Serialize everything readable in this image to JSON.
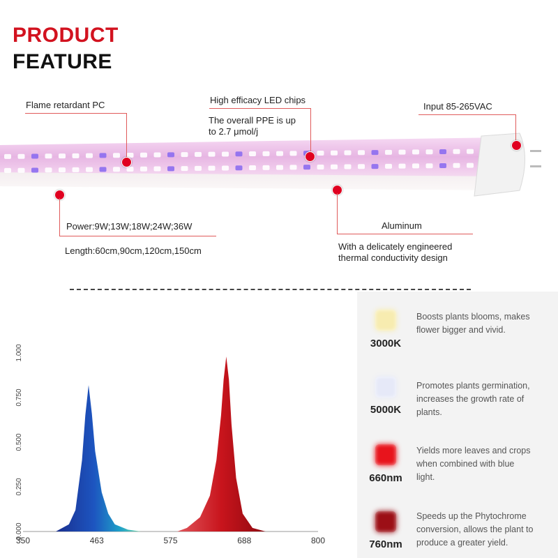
{
  "heading": {
    "line1": "PRODUCT",
    "line2": "FEATURE",
    "line1_color": "#d2121f",
    "line2_color": "#111111"
  },
  "callouts": {
    "flame": "Flame retardant PC",
    "led": "High efficacy LED chips",
    "ppe": [
      "The overall PPE is up",
      "to 2.7 μmol/j"
    ],
    "input": "Input 85-265VAC",
    "power": "Power:9W;13W;18W;24W;36W",
    "length": "Length:60cm,90cm,120cm,150cm",
    "aluminum": "Aluminum",
    "thermal": [
      "With a delicately engineered",
      "thermal conductivity design"
    ]
  },
  "legend": [
    {
      "code": "3000K",
      "color": "#f7ecb0",
      "text": [
        "Boosts plants blooms, makes",
        "flower bigger and vivid."
      ]
    },
    {
      "code": "5000K",
      "color": "#e6e9f8",
      "text": [
        "Promotes plants germination,",
        "increases the growth rate of",
        "plants."
      ]
    },
    {
      "code": "660nm",
      "color": "#e8141c",
      "text": [
        "Yields more leaves and crops",
        "when combined with blue",
        "light."
      ]
    },
    {
      "code": "760nm",
      "color": "#9c0f16",
      "text": [
        "Speeds up the Phytochrome",
        "conversion, allows the plant to",
        "produce a greater yield."
      ]
    }
  ],
  "chart_data": {
    "type": "area",
    "title": "",
    "xlabel": "",
    "ylabel": "",
    "xlim": [
      350,
      800
    ],
    "ylim": [
      0,
      1
    ],
    "x_ticks": [
      "350",
      "463",
      "575",
      "688",
      "800"
    ],
    "y_ticks": [
      "0.000",
      "0.250",
      "0.500",
      "0.750",
      "1.000"
    ],
    "grid": false,
    "series": [
      {
        "peak_x": 450,
        "peak_y": 0.82,
        "color": "#1e3f9e",
        "points": [
          [
            400,
            0.0
          ],
          [
            420,
            0.04
          ],
          [
            430,
            0.12
          ],
          [
            440,
            0.4
          ],
          [
            445,
            0.65
          ],
          [
            450,
            0.82
          ],
          [
            455,
            0.66
          ],
          [
            460,
            0.45
          ],
          [
            470,
            0.22
          ],
          [
            480,
            0.1
          ],
          [
            490,
            0.04
          ],
          [
            510,
            0.01
          ],
          [
            530,
            0.0
          ]
        ]
      },
      {
        "peak_x": 660,
        "peak_y": 0.98,
        "color": "#c8141c",
        "points": [
          [
            585,
            0.0
          ],
          [
            600,
            0.02
          ],
          [
            620,
            0.08
          ],
          [
            635,
            0.2
          ],
          [
            645,
            0.4
          ],
          [
            652,
            0.65
          ],
          [
            656,
            0.85
          ],
          [
            660,
            0.98
          ],
          [
            664,
            0.85
          ],
          [
            668,
            0.6
          ],
          [
            675,
            0.3
          ],
          [
            685,
            0.1
          ],
          [
            700,
            0.02
          ],
          [
            720,
            0.0
          ]
        ]
      }
    ]
  }
}
